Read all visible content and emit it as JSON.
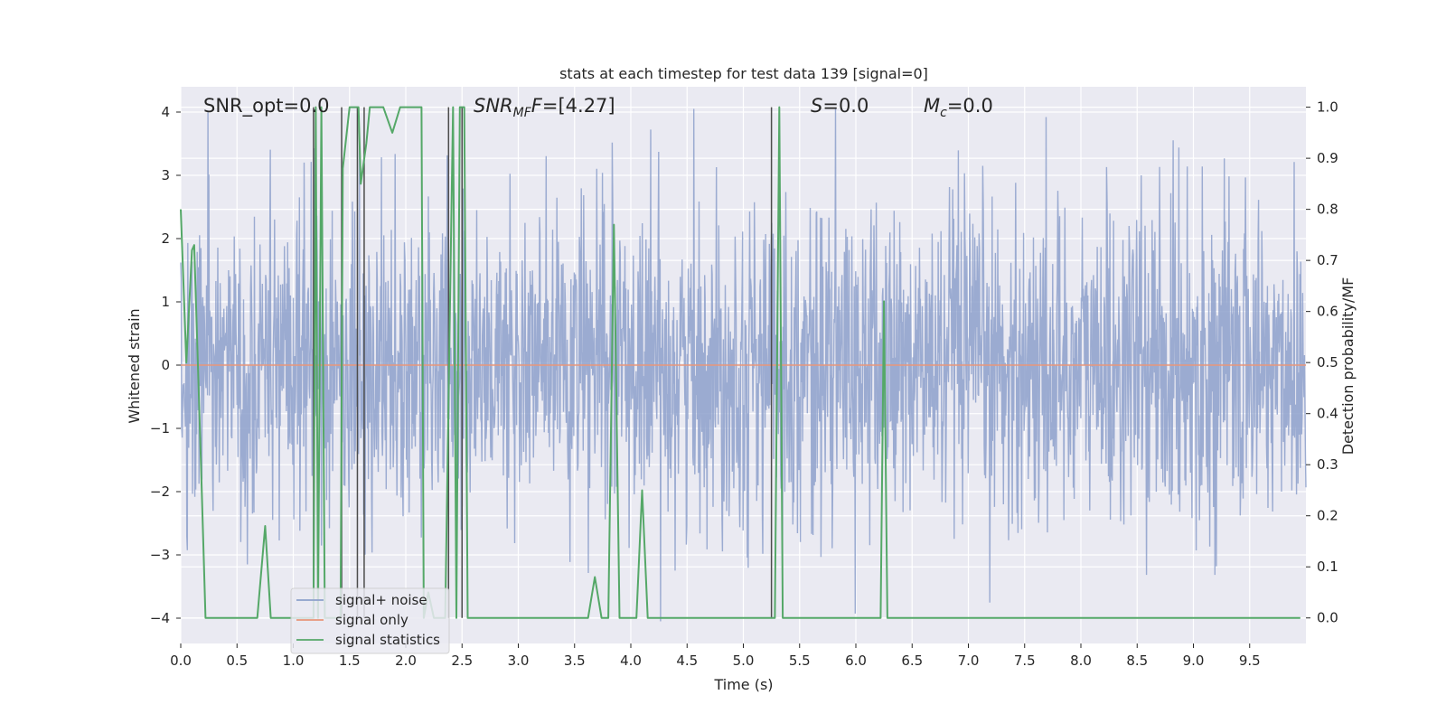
{
  "chart_data": {
    "type": "line",
    "title": "stats at each timestep for test data 139 [signal=0]",
    "xlabel": "Time (s)",
    "ylabel_left": "Whitened strain",
    "ylabel_right": "Detection probability/MF",
    "xlim": [
      0,
      10
    ],
    "ylim_left": [
      -4.4,
      4.4
    ],
    "ylim_right": [
      -0.05,
      1.04
    ],
    "xticks": [
      "0.0",
      "0.5",
      "1.0",
      "1.5",
      "2.0",
      "2.5",
      "3.0",
      "3.5",
      "4.0",
      "4.5",
      "5.0",
      "5.5",
      "6.0",
      "6.5",
      "7.0",
      "7.5",
      "8.0",
      "8.5",
      "9.0",
      "9.5"
    ],
    "xtick_values": [
      0,
      0.5,
      1,
      1.5,
      2,
      2.5,
      3,
      3.5,
      4,
      4.5,
      5,
      5.5,
      6,
      6.5,
      7,
      7.5,
      8,
      8.5,
      9,
      9.5
    ],
    "yticks_left": [
      "−4",
      "−3",
      "−2",
      "−1",
      "0",
      "1",
      "2",
      "3",
      "4"
    ],
    "yticks_left_values": [
      -4,
      -3,
      -2,
      -1,
      0,
      1,
      2,
      3,
      4
    ],
    "yticks_right": [
      "0.0",
      "0.1",
      "0.2",
      "0.3",
      "0.4",
      "0.5",
      "0.6",
      "0.7",
      "0.8",
      "0.9",
      "1.0"
    ],
    "yticks_right_values": [
      0,
      0.1,
      0.2,
      0.3,
      0.4,
      0.5,
      0.6,
      0.7,
      0.8,
      0.9,
      1.0
    ],
    "grid": true,
    "legend_position": "lower-left",
    "annotations": {
      "snr_opt": {
        "label": "SNR_opt",
        "value": "=0.0"
      },
      "snr_mf": {
        "label": "SNR",
        "sub": "MF",
        "value": "=[4.27]"
      },
      "s": {
        "label": "S",
        "value": "=0.0"
      },
      "mc": {
        "label": "M",
        "sub": "c",
        "value": "=0.0"
      }
    },
    "series": [
      {
        "name": "signal+ noise",
        "color": "#8da0cb",
        "axis": "left",
        "kind": "noise",
        "amplitude_envelope": 4.05
      },
      {
        "name": "signal only",
        "color": "#e8967a",
        "axis": "left",
        "x": [
          0,
          10
        ],
        "y": [
          0,
          0
        ]
      },
      {
        "name": "signal statistics",
        "color": "#55a868",
        "axis": "right",
        "x": [
          0,
          0.05,
          0.1,
          0.12,
          0.18,
          0.22,
          0.68,
          0.75,
          0.8,
          1.15,
          1.18,
          1.2,
          1.22,
          1.25,
          1.28,
          1.3,
          1.42,
          1.44,
          1.5,
          1.58,
          1.6,
          1.65,
          1.68,
          1.8,
          1.88,
          1.95,
          2.05,
          2.1,
          2.14,
          2.16,
          2.2,
          2.25,
          2.3,
          2.35,
          2.42,
          2.45,
          2.48,
          2.52,
          2.55,
          3.62,
          3.68,
          3.74,
          3.8,
          3.85,
          3.9,
          3.95,
          4.0,
          4.05,
          4.1,
          4.15,
          4.2,
          4.25,
          5.25,
          5.28,
          5.32,
          5.35,
          5.4,
          6.15,
          6.22,
          6.25,
          6.28,
          6.32,
          9.95
        ],
        "y": [
          0.8,
          0.5,
          0.72,
          0.73,
          0.3,
          0.0,
          0.0,
          0.18,
          0.0,
          0.0,
          0.0,
          1.0,
          0.0,
          1.0,
          0.0,
          0.0,
          0.0,
          0.88,
          1.0,
          1.0,
          0.85,
          0.93,
          1.0,
          1.0,
          0.95,
          1.0,
          1.0,
          1.0,
          1.0,
          0.0,
          0.05,
          0.0,
          0.0,
          0.0,
          1.0,
          0.0,
          1.0,
          1.0,
          0.0,
          0.0,
          0.08,
          0.0,
          0.0,
          0.77,
          0.0,
          0.0,
          0.0,
          0.0,
          0.25,
          0.0,
          0.0,
          0.0,
          0.0,
          0.0,
          1.0,
          0.0,
          0.0,
          0.0,
          0.0,
          0.62,
          0.0,
          0.0,
          0.0
        ]
      }
    ],
    "vertical_markers": {
      "color": "#4c4c4c",
      "x": [
        1.18,
        1.43,
        1.57,
        1.63,
        2.38,
        2.5,
        5.25
      ]
    }
  }
}
